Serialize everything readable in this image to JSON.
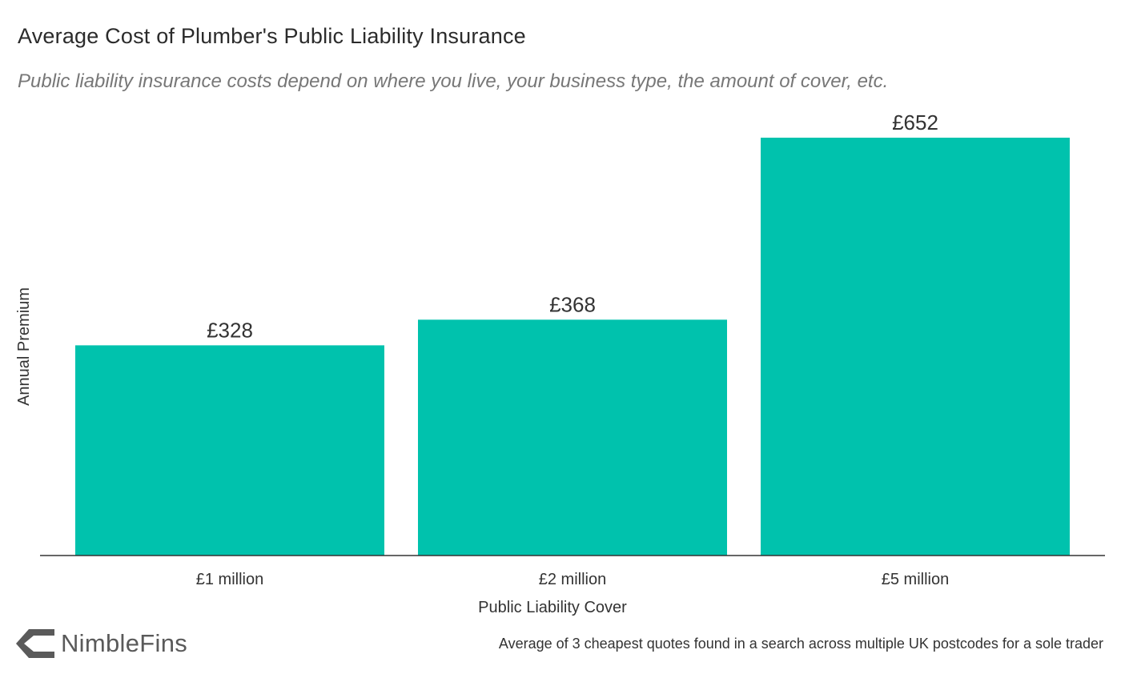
{
  "header": {
    "title": "Average Cost of Plumber's Public Liability Insurance",
    "subtitle": "Public liability insurance costs depend on where you live, your business type, the amount of cover, etc."
  },
  "chart_data": {
    "type": "bar",
    "categories": [
      "£1 million",
      "£2 million",
      "£5 million"
    ],
    "values": [
      328,
      368,
      652
    ],
    "data_labels": [
      "£328",
      "£368",
      "£652"
    ],
    "xlabel": "Public Liability Cover",
    "ylabel": "Annual Premium",
    "ylim": [
      0,
      652
    ],
    "grid": false,
    "bar_color": "#00c2ad"
  },
  "footer": {
    "brand": "NimbleFins",
    "note": "Average of 3 cheapest quotes found in a search across multiple UK postcodes for a sole trader"
  }
}
